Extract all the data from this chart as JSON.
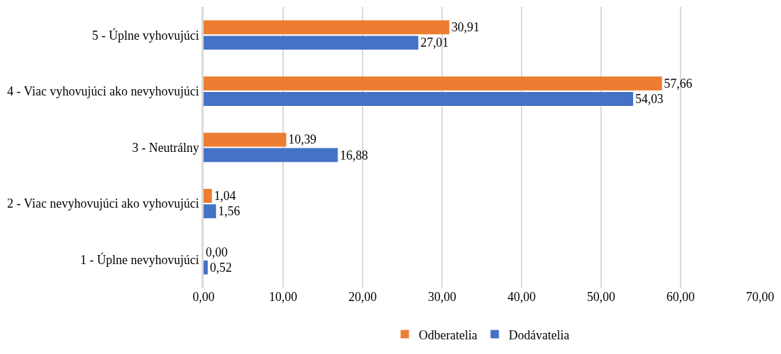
{
  "chart_data": {
    "type": "bar",
    "orientation": "horizontal",
    "categories": [
      "5 - Úplne vyhovujúci",
      "4 - Viac vyhovujúci ako nevyhovujúci",
      "3 - Neutrálny",
      "2 - Viac nevyhovujúci ako vyhovujúci",
      "1 - Úplne nevyhovujúci"
    ],
    "series": [
      {
        "name": "Odberatelia",
        "color": "#ed7d31",
        "values": [
          30.91,
          57.66,
          10.39,
          1.04,
          0.0
        ],
        "value_labels": [
          "30,91",
          "57,66",
          "10,39",
          "1,04",
          "0,00"
        ]
      },
      {
        "name": "Dodávatelia",
        "color": "#4472c4",
        "values": [
          27.01,
          54.03,
          16.88,
          1.56,
          0.52
        ],
        "value_labels": [
          "27,01",
          "54,03",
          "16,88",
          "1,56",
          "0,52"
        ]
      }
    ],
    "xlim": [
      0,
      70
    ],
    "xticks": [
      {
        "value": 0,
        "label": "0,00"
      },
      {
        "value": 10,
        "label": "10,00"
      },
      {
        "value": 20,
        "label": "20,00"
      },
      {
        "value": 30,
        "label": "30,00"
      },
      {
        "value": 40,
        "label": "40,00"
      },
      {
        "value": 50,
        "label": "50,00"
      },
      {
        "value": 60,
        "label": "60,00"
      },
      {
        "value": 70,
        "label": "70,00"
      }
    ],
    "grid": "x",
    "legend": "bottom"
  }
}
